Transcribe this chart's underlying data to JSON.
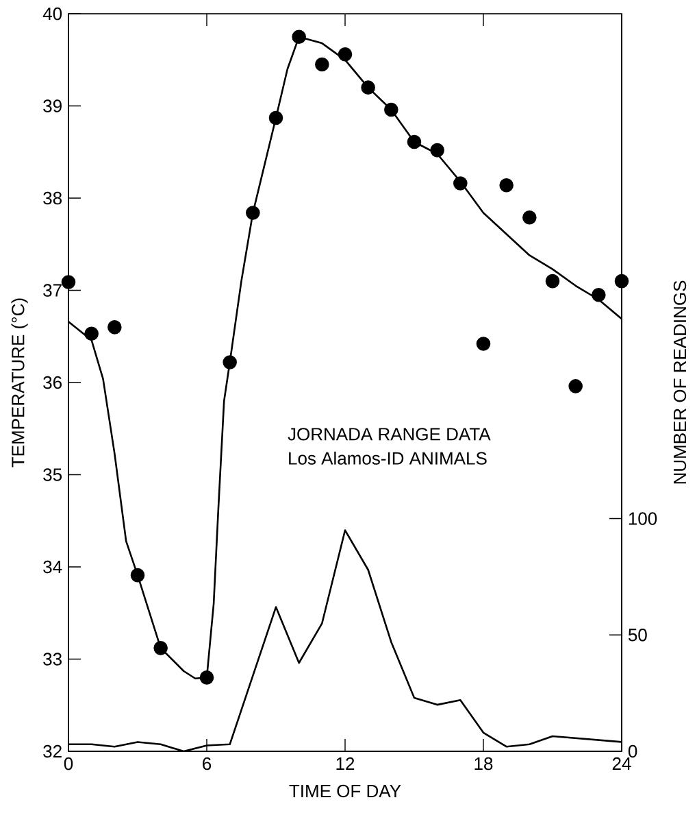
{
  "chart_data": {
    "type": "scatter",
    "xlabel": "TIME OF DAY",
    "ylabel": "TEMPERATURE (°C)",
    "y2label": "NUMBER OF READINGS",
    "annotations": [
      "JORNADA RANGE DATA",
      "Los Alamos-ID ANIMALS"
    ],
    "xlim": [
      0,
      24
    ],
    "xticks": [
      0,
      6,
      12,
      18,
      24
    ],
    "ylim": [
      32,
      40
    ],
    "yticks": [
      32,
      33,
      34,
      35,
      36,
      37,
      38,
      39,
      40
    ],
    "y2lim": [
      0,
      317
    ],
    "y2ticks": [
      0,
      50,
      100
    ],
    "grid": false,
    "series": [
      {
        "marker": "circle",
        "color": "#000000",
        "x": [
          0,
          1,
          2,
          3,
          4,
          6,
          7,
          8,
          9,
          10,
          11,
          12,
          13,
          14,
          15,
          16,
          17,
          18,
          19,
          20,
          21,
          22,
          23,
          24
        ],
        "values": [
          37.09,
          36.53,
          36.6,
          33.91,
          33.12,
          32.8,
          36.22,
          37.84,
          38.87,
          39.75,
          39.45,
          39.56,
          39.2,
          38.96,
          38.61,
          38.52,
          38.16,
          36.42,
          38.14,
          37.79,
          37.1,
          35.96,
          36.95,
          37.1
        ]
      },
      {
        "type": "line",
        "marker": "none",
        "color": "#000000",
        "x": [
          0,
          1,
          1.5,
          2,
          2.5,
          3,
          4,
          5,
          5.5,
          6,
          6.3,
          6.5,
          6.75,
          7,
          7.5,
          8,
          9,
          9.5,
          10,
          11,
          12,
          13,
          14,
          15,
          16,
          17,
          18,
          19,
          20,
          21,
          22,
          23,
          24
        ],
        "values": [
          36.66,
          36.46,
          36.04,
          35.23,
          34.28,
          33.91,
          33.12,
          32.87,
          32.79,
          32.8,
          33.6,
          34.62,
          35.8,
          36.22,
          37.1,
          37.84,
          38.87,
          39.4,
          39.75,
          39.68,
          39.5,
          39.2,
          38.96,
          38.61,
          38.48,
          38.18,
          37.84,
          37.61,
          37.38,
          37.23,
          37.05,
          36.9,
          36.69
        ]
      },
      {
        "type": "line",
        "marker": "none",
        "axis": "y2",
        "color": "#000000",
        "x": [
          0,
          1,
          2,
          3,
          4,
          5,
          6,
          7,
          9,
          10,
          11,
          12,
          13,
          14,
          15,
          16,
          17,
          18,
          19,
          20,
          21,
          24
        ],
        "values": [
          3,
          3,
          2,
          4,
          3,
          0,
          2.5,
          3,
          62,
          38,
          55,
          95,
          78,
          47,
          23,
          20,
          22,
          8,
          2,
          3,
          6.5,
          4
        ]
      }
    ]
  }
}
